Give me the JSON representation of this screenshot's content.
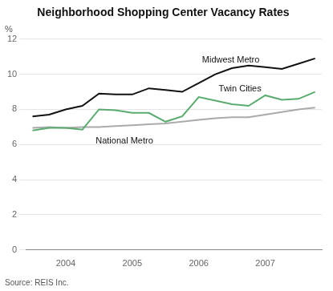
{
  "chart_data": {
    "type": "line",
    "title": "Neighborhood Shopping Center Vacancy Rates",
    "y_label": "%",
    "source": "Source: REIS Inc.",
    "x": [
      2003.5,
      2003.75,
      2004.0,
      2004.25,
      2004.5,
      2004.75,
      2005.0,
      2005.25,
      2005.5,
      2005.75,
      2006.0,
      2006.25,
      2006.5,
      2006.75,
      2007.0,
      2007.25,
      2007.5,
      2007.75
    ],
    "series": [
      {
        "name": "Midwest Metro",
        "color": "#111111",
        "values": [
          7.6,
          7.7,
          8.0,
          8.2,
          8.9,
          8.85,
          8.85,
          9.2,
          9.1,
          9.0,
          9.5,
          10.0,
          10.35,
          10.5,
          10.4,
          10.3,
          10.6,
          10.9
        ]
      },
      {
        "name": "Twin Cities",
        "color": "#5aab6e",
        "values": [
          6.8,
          6.95,
          6.95,
          6.85,
          8.0,
          7.95,
          7.8,
          7.8,
          7.3,
          7.6,
          8.7,
          8.5,
          8.3,
          8.2,
          8.8,
          8.55,
          8.6,
          9.0
        ]
      },
      {
        "name": "National Metro",
        "color": "#aaaaaa",
        "values": [
          6.95,
          7.0,
          6.95,
          7.0,
          7.0,
          7.05,
          7.1,
          7.15,
          7.2,
          7.3,
          7.4,
          7.5,
          7.55,
          7.55,
          7.7,
          7.85,
          8.0,
          8.1
        ]
      }
    ],
    "annotations": [
      {
        "text": "Midwest Metro",
        "x": 2006.05,
        "y": 10.55
      },
      {
        "text": "Twin Cities",
        "x": 2006.3,
        "y": 8.9
      },
      {
        "text": "National Metro",
        "x": 2004.45,
        "y": 6.45
      }
    ],
    "xlim": [
      2003.4,
      2007.85
    ],
    "xticks": [
      2004,
      2005,
      2006,
      2007
    ],
    "ylim": [
      0,
      12
    ],
    "yticks": [
      0,
      2,
      4,
      6,
      8,
      10,
      12
    ],
    "grid": true
  }
}
